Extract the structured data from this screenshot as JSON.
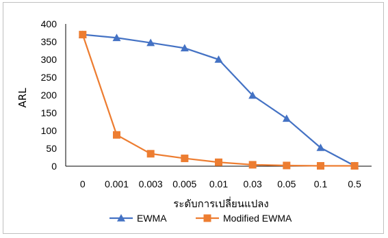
{
  "chart_data": {
    "type": "line",
    "categories": [
      "0",
      "0.001",
      "0.003",
      "0.005",
      "0.01",
      "0.03",
      "0.05",
      "0.1",
      "0.5"
    ],
    "series": [
      {
        "name": "EWMA",
        "marker": "triangle",
        "color": "#4472c4",
        "values": [
          370,
          361,
          347,
          332,
          300,
          199,
          134,
          52,
          1
        ]
      },
      {
        "name": "Modified EWMA",
        "marker": "square",
        "color": "#ed7d31",
        "values": [
          370,
          88,
          35,
          22,
          11,
          4,
          2,
          1,
          1
        ]
      }
    ],
    "xlabel": "ระดับการเปลี่ยนแปลง",
    "ylabel": "ARL",
    "ylim": [
      0,
      400
    ],
    "yticks": [
      0,
      50,
      100,
      150,
      200,
      250,
      300,
      350,
      400
    ],
    "grid": false,
    "legend_position": "bottom"
  }
}
